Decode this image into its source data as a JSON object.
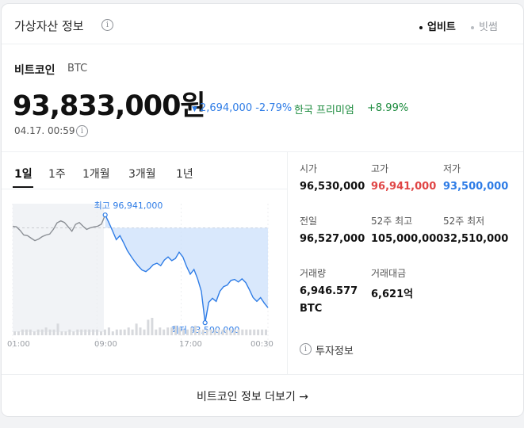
{
  "header": {
    "title": "가상자산 정보",
    "sources": [
      "업비트",
      "빗썸"
    ]
  },
  "coin": {
    "name": "비트코인",
    "ticker": "BTC",
    "price": "93,833,000원",
    "change": "2,694,000 -2.79%",
    "premium_label": "한국 프리미엄",
    "premium_value": "+8.99%",
    "timestamp": "04.17. 00:59"
  },
  "tabs": [
    "1일",
    "1주",
    "1개월",
    "3개월",
    "1년"
  ],
  "stats": {
    "open_label": "시가",
    "open": "96,530,000",
    "high_label": "고가",
    "high": "96,941,000",
    "low_label": "저가",
    "low": "93,500,000",
    "prev_label": "전일",
    "prev": "96,527,000",
    "w52_high_label": "52주 최고",
    "w52_high": "105,000,000",
    "w52_low_label": "52주 최저",
    "w52_low": "32,510,000",
    "volume_label": "거래량",
    "volume": "6,946.577",
    "volume_unit": "BTC",
    "amount_label": "거래대금",
    "amount": "6,621억"
  },
  "links": {
    "invest_info": "투자정보",
    "more": "비트코인 정보 더보기 →"
  },
  "colors": {
    "up": "#e04545",
    "down": "#2e7ce6",
    "premium": "#1a8a3c"
  },
  "chart_data": {
    "type": "line",
    "x_ticks": [
      "01:00",
      "09:00",
      "17:00",
      "00:30"
    ],
    "annotations": {
      "high": "최고 96,941,000",
      "low": "최저 93,500,000"
    },
    "high_value": 96941000,
    "low_value": 93500000,
    "prev_close": 96527000,
    "ylim": [
      93200000,
      97300000
    ],
    "price_before_open": [
      96580000,
      96560000,
      96450000,
      96300000,
      96280000,
      96200000,
      96120000,
      96170000,
      96250000,
      96300000,
      96330000,
      96480000,
      96690000,
      96750000,
      96700000,
      96560000,
      96420000,
      96640000,
      96700000,
      96580000,
      96480000,
      96530000,
      96560000,
      96580000,
      96650000
    ],
    "price_after_open": [
      96941000,
      96700000,
      96430000,
      96150000,
      96280000,
      96050000,
      95800000,
      95620000,
      95450000,
      95300000,
      95180000,
      95130000,
      95230000,
      95350000,
      95400000,
      95320000,
      95500000,
      95600000,
      95480000,
      95550000,
      95750000,
      95600000,
      95300000,
      95050000,
      95200000,
      94900000,
      94500000,
      93500000,
      94150000,
      94280000,
      94180000,
      94500000,
      94650000,
      94700000,
      94850000,
      94880000,
      94800000,
      94900000,
      94780000,
      94550000,
      94300000,
      94180000,
      94300000,
      94130000,
      93980000
    ],
    "volume": [
      2,
      2,
      3,
      3,
      3,
      2,
      3,
      3,
      4,
      3,
      3,
      6,
      2,
      2,
      3,
      2,
      3,
      3,
      3,
      3,
      3,
      3,
      2,
      3,
      4,
      2,
      3,
      3,
      3,
      4,
      3,
      6,
      4,
      3,
      8,
      9,
      3,
      4,
      3,
      4,
      4,
      5,
      4,
      3,
      3,
      4,
      5,
      3,
      3,
      3,
      3,
      3,
      3,
      3,
      3,
      3,
      3,
      3,
      3,
      3,
      3,
      3,
      3,
      3,
      3
    ]
  }
}
